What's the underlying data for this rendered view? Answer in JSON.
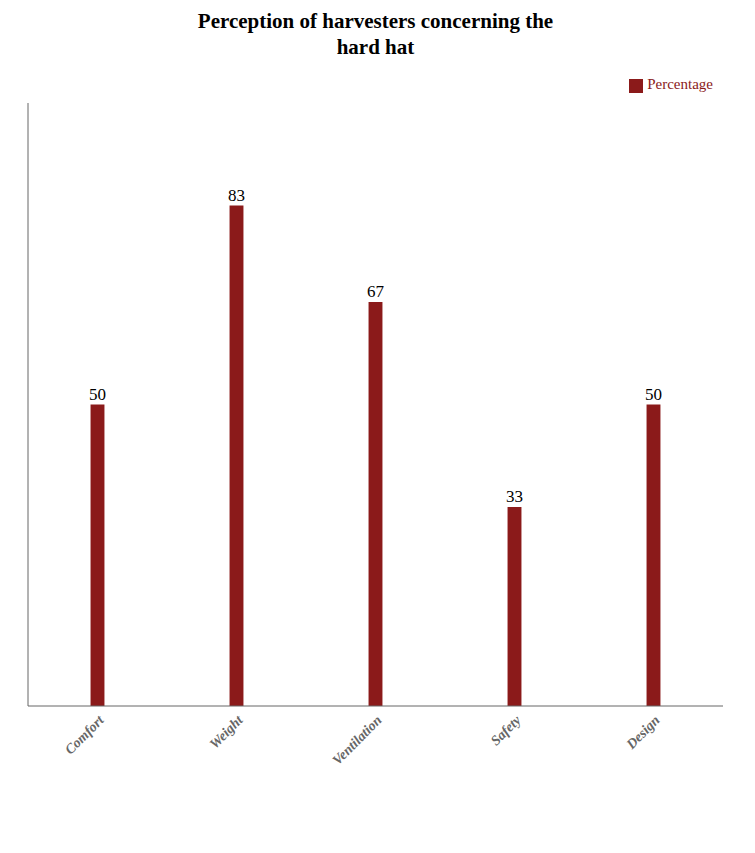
{
  "chart_data": {
    "type": "bar",
    "title": "Perception of harvesters concerning the\nhard hat",
    "categories": [
      "Comfort",
      "Weight",
      "Ventilation",
      "Safety",
      "Design"
    ],
    "series": [
      {
        "name": "Percentage",
        "color": "#8B1A1A",
        "values": [
          50,
          83,
          67,
          33,
          50
        ]
      }
    ],
    "ylim": [
      0,
      100
    ],
    "grid": false,
    "legend": "upper right",
    "data_labels": true,
    "tick_labels": "x"
  }
}
